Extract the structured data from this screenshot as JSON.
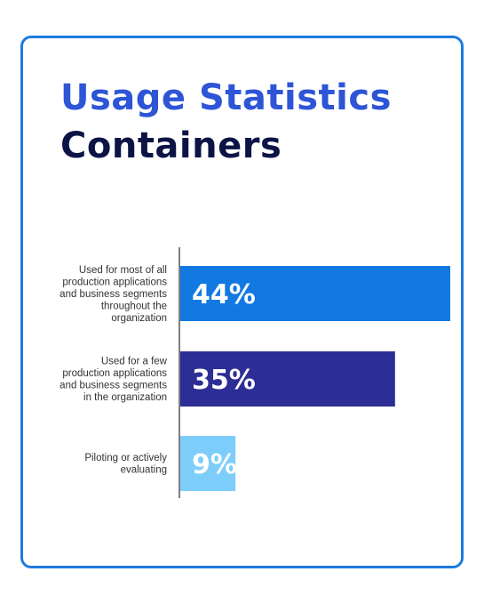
{
  "title": {
    "line1": "Usage Statistics",
    "line2": "Containers"
  },
  "colors": {
    "border": "#1e7be0",
    "title_line1": "#2d55d6",
    "title_line2": "#0c1446",
    "axis": "#555555"
  },
  "chart_data": {
    "type": "bar",
    "orientation": "horizontal",
    "unit": "%",
    "categories": [
      "Used for most of all production applications and business segments throughout the organization",
      "Used for a few production applications and business segments in the organization",
      "Piloting or actively evaluating"
    ],
    "category_lines": [
      [
        "Used for most of all",
        "production applications",
        "and business segments",
        "throughout the",
        "organization"
      ],
      [
        "Used for a few",
        "production applications",
        "and business segments",
        "in the organization"
      ],
      [
        "Piloting or actively",
        "evaluating"
      ]
    ],
    "values": [
      44,
      35,
      9
    ],
    "value_labels": [
      "44%",
      "35%",
      "9%"
    ],
    "bar_colors": [
      "#1279e2",
      "#2d2d96",
      "#7dcdfa"
    ],
    "xlim": [
      0,
      44
    ]
  }
}
